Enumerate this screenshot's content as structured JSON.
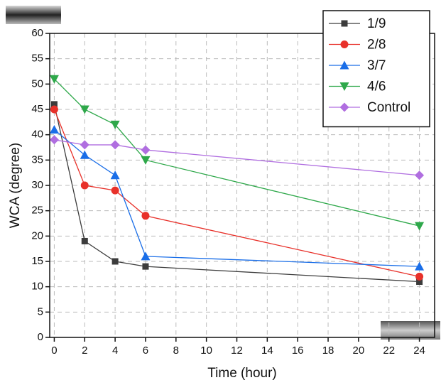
{
  "chart_data": {
    "type": "line",
    "x_label": "Time (hour)",
    "y_label": "WCA (degree)",
    "x": [
      0,
      2,
      4,
      6,
      24
    ],
    "series": [
      {
        "name": "1/9",
        "color": "#3c3c3c",
        "marker": "square",
        "values": [
          46,
          19,
          15,
          14,
          11
        ]
      },
      {
        "name": "2/8",
        "color": "#e8312a",
        "marker": "circle",
        "values": [
          45,
          30,
          29,
          24,
          12
        ]
      },
      {
        "name": "3/7",
        "color": "#1a6ee8",
        "marker": "triangle",
        "values": [
          41,
          36,
          32,
          16,
          14
        ]
      },
      {
        "name": "4/6",
        "color": "#2ea84a",
        "marker": "triangle-down",
        "values": [
          51,
          45,
          42,
          35,
          22
        ]
      },
      {
        "name": "Control",
        "color": "#b06ee0",
        "marker": "diamond",
        "values": [
          39,
          38,
          38,
          37,
          32
        ]
      }
    ],
    "xlim": [
      -0.3,
      25
    ],
    "xticks": [
      0,
      2,
      4,
      6,
      8,
      10,
      12,
      14,
      16,
      18,
      20,
      22,
      24
    ],
    "ylim": [
      0,
      60
    ],
    "yticks": [
      0,
      5,
      10,
      15,
      20,
      25,
      30,
      35,
      40,
      45,
      50,
      55,
      60
    ],
    "grid": true,
    "legend": "top-right"
  }
}
